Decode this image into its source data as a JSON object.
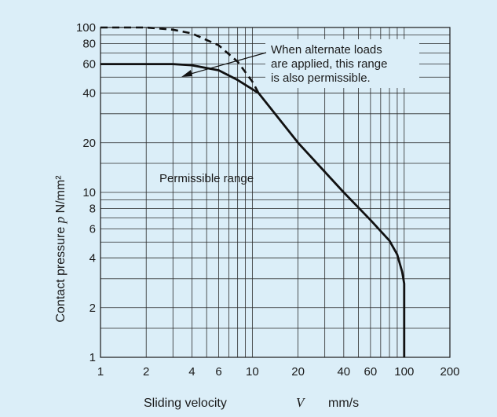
{
  "chart_data": {
    "type": "line",
    "x_scale": "log",
    "y_scale": "log",
    "xlim": [
      1,
      200
    ],
    "ylim": [
      1,
      100
    ],
    "xlabel": {
      "text": "Sliding velocity",
      "symbol": "V",
      "unit": "mm/s"
    },
    "ylabel": {
      "text": "Contact pressure",
      "symbol": "p",
      "unit": "N/mm²"
    },
    "x_ticks": [
      {
        "value": 1,
        "label": "1"
      },
      {
        "value": 2,
        "label": "2"
      },
      {
        "value": 4,
        "label": "4"
      },
      {
        "value": 6,
        "label": "6"
      },
      {
        "value": 10,
        "label": "10"
      },
      {
        "value": 20,
        "label": "20"
      },
      {
        "value": 40,
        "label": "40"
      },
      {
        "value": 60,
        "label": "60"
      },
      {
        "value": 100,
        "label": "100"
      },
      {
        "value": 200,
        "label": "200"
      }
    ],
    "y_ticks": [
      {
        "value": 1,
        "label": "1"
      },
      {
        "value": 2,
        "label": "2"
      },
      {
        "value": 4,
        "label": "4"
      },
      {
        "value": 6,
        "label": "6"
      },
      {
        "value": 8,
        "label": "8"
      },
      {
        "value": 10,
        "label": "10"
      },
      {
        "value": 20,
        "label": "20"
      },
      {
        "value": 40,
        "label": "40"
      },
      {
        "value": 60,
        "label": "60"
      },
      {
        "value": 80,
        "label": "80"
      },
      {
        "value": 100,
        "label": "100"
      }
    ],
    "grid_x": [
      1,
      2,
      3,
      4,
      5,
      6,
      7,
      8,
      9,
      10,
      20,
      30,
      40,
      50,
      60,
      70,
      80,
      90,
      100,
      200
    ],
    "grid_y": [
      1,
      1.5,
      2,
      3,
      4,
      5,
      6,
      7,
      8,
      9,
      10,
      15,
      20,
      30,
      40,
      50,
      60,
      70,
      80,
      90,
      100
    ],
    "grid": true,
    "series": [
      {
        "style": "solid",
        "points": [
          [
            1,
            60
          ],
          [
            3,
            60
          ],
          [
            4,
            59
          ],
          [
            6,
            55
          ],
          [
            8,
            48
          ],
          [
            11,
            40
          ],
          [
            20,
            20
          ],
          [
            40,
            10
          ],
          [
            60,
            6.8
          ],
          [
            80,
            5.1
          ],
          [
            90,
            4.2
          ],
          [
            97,
            3.3
          ],
          [
            100,
            2.8
          ],
          [
            100,
            1
          ]
        ]
      },
      {
        "style": "dashed",
        "points": [
          [
            1,
            100
          ],
          [
            2,
            100
          ],
          [
            3,
            97
          ],
          [
            4,
            92
          ],
          [
            6,
            78
          ],
          [
            8,
            62
          ],
          [
            10,
            47
          ],
          [
            11,
            40
          ]
        ]
      }
    ],
    "annotations": [
      {
        "id": "permissible",
        "lines": [
          "Permissible range"
        ]
      },
      {
        "id": "alternate",
        "lines": [
          "When alternate loads",
          "are applied, this range",
          "is also permissible."
        ]
      }
    ]
  }
}
